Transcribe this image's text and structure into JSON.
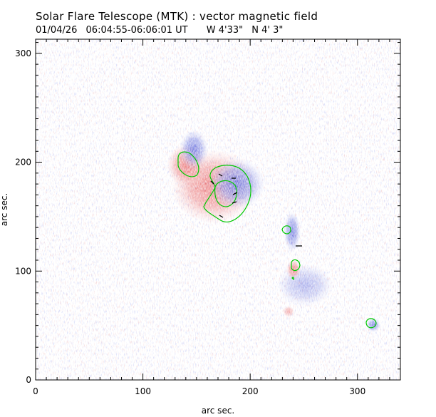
{
  "title": "Solar Flare Telescope (MTK) : vector magnetic field",
  "subtitle": {
    "date": "01/04/26",
    "time_range": "06:04:55-06:06:01 UT",
    "position_w": "W 4'33\"",
    "position_n": "N 4' 3\""
  },
  "axes": {
    "xlabel": "arc sec.",
    "ylabel": "arc sec.",
    "xlim": [
      0,
      340
    ],
    "ylim": [
      0,
      313
    ],
    "xticks": [
      0,
      100,
      200,
      300
    ],
    "yticks": [
      0,
      100,
      200,
      300
    ]
  },
  "colors": {
    "positive": "#e84848",
    "negative": "#3b44d4",
    "contour": "#00c800",
    "vector": "#000000",
    "background": "#ffffff"
  },
  "features": {
    "main_region": {
      "description": "bipolar sunspot group",
      "center_arcsec": [
        175,
        182
      ]
    },
    "small_spots": [
      [
        233,
        138
      ],
      [
        240,
        102
      ],
      [
        312,
        50
      ]
    ]
  }
}
